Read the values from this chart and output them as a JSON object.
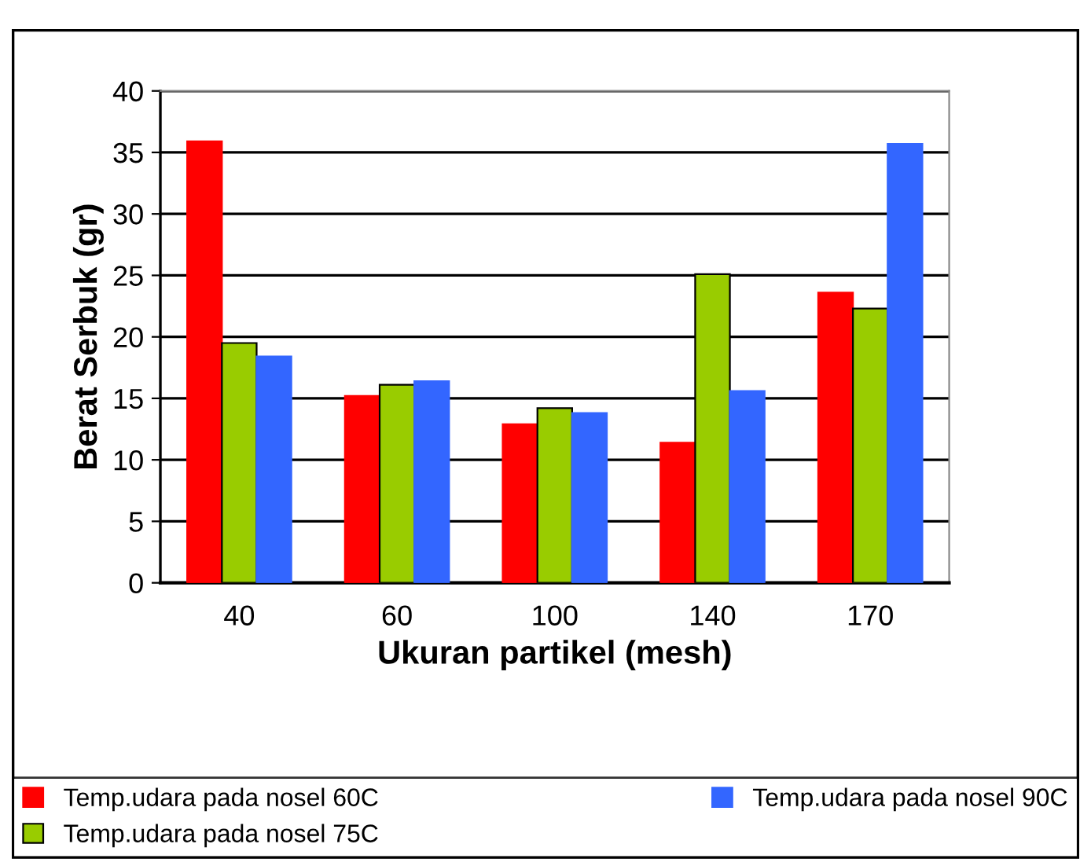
{
  "chart_data": {
    "type": "bar",
    "xlabel": "Ukuran partikel (mesh)",
    "ylabel": "Berat Serbuk (gr)",
    "categories": [
      "40",
      "60",
      "100",
      "140",
      "170"
    ],
    "series": [
      {
        "name": "Temp.udara pada nosel 60C",
        "color": "#ff0000",
        "values": [
          35.9,
          15.2,
          12.9,
          11.4,
          23.6
        ]
      },
      {
        "name": "Temp.udara pada nosel 75C",
        "color": "#99cc00",
        "values": [
          19.5,
          16.1,
          14.2,
          25.1,
          22.3
        ]
      },
      {
        "name": "Temp.udara pada nosel 90C",
        "color": "#3366ff",
        "values": [
          18.4,
          16.4,
          13.8,
          15.6,
          35.7
        ]
      }
    ],
    "ylim": [
      0,
      40
    ],
    "yticks": [
      0,
      5,
      10,
      15,
      20,
      25,
      30,
      35,
      40
    ],
    "grid": "y",
    "legend": "bottom"
  }
}
